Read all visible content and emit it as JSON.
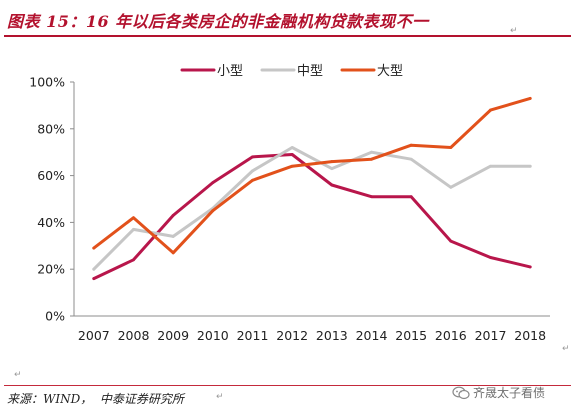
{
  "figure": {
    "title": "图表 15：16 年以后各类房企的非金融机构贷款表现不一",
    "source": "来源：WIND，  中泰证券研究所",
    "watermark": "齐晟太子看债",
    "return_mark": "↵"
  },
  "chart_data": {
    "type": "line",
    "title": "",
    "xlabel": "",
    "ylabel": "",
    "x": [
      "2007",
      "2008",
      "2009",
      "2010",
      "2011",
      "2012",
      "2013",
      "2014",
      "2015",
      "2016",
      "2017",
      "2018"
    ],
    "ylim": [
      0,
      100
    ],
    "yticks": [
      "0%",
      "20%",
      "40%",
      "60%",
      "80%",
      "100%"
    ],
    "legend_position": "top",
    "grid": false,
    "series": [
      {
        "name": "小型",
        "color": "#b8164b",
        "values": [
          16,
          24,
          43,
          57,
          68,
          69,
          56,
          51,
          51,
          32,
          25,
          21
        ]
      },
      {
        "name": "中型",
        "color": "#c6c6c6",
        "values": [
          20,
          37,
          34,
          46,
          62,
          72,
          63,
          70,
          67,
          55,
          64,
          64
        ]
      },
      {
        "name": "大型",
        "color": "#e2511b",
        "values": [
          29,
          42,
          27,
          45,
          58,
          64,
          66,
          67,
          73,
          72,
          88,
          93
        ]
      }
    ]
  }
}
